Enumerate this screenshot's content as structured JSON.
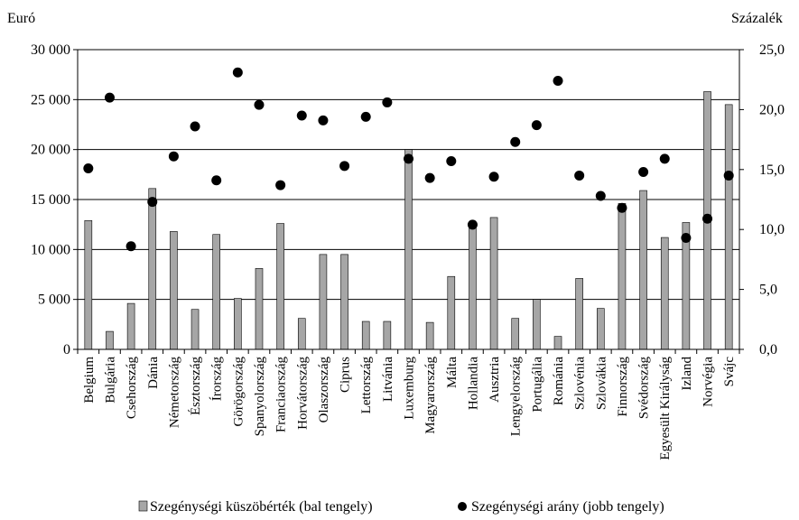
{
  "chart_data": {
    "type": "bar",
    "left_axis_unit": "Euró",
    "right_axis_unit": "Százalék",
    "left_ylim": [
      0,
      30000
    ],
    "right_ylim": [
      0,
      25
    ],
    "left_ticks": [
      "0",
      "5 000",
      "10 000",
      "15 000",
      "20 000",
      "25 000",
      "30 000"
    ],
    "right_ticks": [
      "0,0",
      "5,0",
      "10,0",
      "15,0",
      "20,0",
      "25,0"
    ],
    "grid": true,
    "legend_position": "bottom",
    "categories": [
      "Belgium",
      "Bulgária",
      "Csehország",
      "Dánia",
      "Németország",
      "Észtország",
      "Írország",
      "Görögország",
      "Spanyolország",
      "Franciaország",
      "Horvátország",
      "Olaszország",
      "Ciprus",
      "Lettország",
      "Litvánia",
      "Luxemburg",
      "Magyarország",
      "Málta",
      "Hollandia",
      "Ausztria",
      "Lengyelország",
      "Portugália",
      "Románia",
      "Szlovénia",
      "Szlovákia",
      "Finnország",
      "Svédország",
      "Egyesült Királyság",
      "Izland",
      "Norvégia",
      "Svájc"
    ],
    "series": [
      {
        "name": "Szegénységi küszöbérték (bal tengely)",
        "axis": "left",
        "kind": "bar",
        "color": "#a6a6a6",
        "values": [
          12900,
          1800,
          4600,
          16100,
          11800,
          4000,
          11500,
          5100,
          8100,
          12600,
          3100,
          9500,
          9500,
          2800,
          2800,
          20000,
          2700,
          7300,
          12400,
          13200,
          3100,
          5000,
          1300,
          7100,
          4100,
          14600,
          15900,
          11200,
          12700,
          25800,
          24500
        ]
      },
      {
        "name": "Szegénységi arány (jobb tengely)",
        "axis": "right",
        "kind": "scatter",
        "color": "#000000",
        "values": [
          15.1,
          21.0,
          8.6,
          12.3,
          16.1,
          18.6,
          14.1,
          23.1,
          20.4,
          13.7,
          19.5,
          19.1,
          15.3,
          19.4,
          20.6,
          15.9,
          14.3,
          15.7,
          10.4,
          14.4,
          17.3,
          18.7,
          22.4,
          14.5,
          12.8,
          11.8,
          14.8,
          15.9,
          9.3,
          10.9,
          14.5
        ]
      }
    ]
  }
}
